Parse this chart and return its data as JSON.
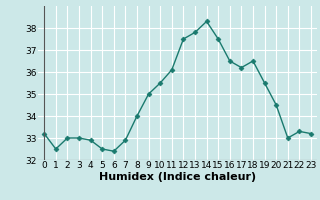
{
  "x": [
    0,
    1,
    2,
    3,
    4,
    5,
    6,
    7,
    8,
    9,
    10,
    11,
    12,
    13,
    14,
    15,
    16,
    17,
    18,
    19,
    20,
    21,
    22,
    23
  ],
  "y": [
    33.2,
    32.5,
    33.0,
    33.0,
    32.9,
    32.5,
    32.4,
    32.9,
    34.0,
    35.0,
    35.5,
    36.1,
    37.5,
    37.8,
    38.3,
    37.5,
    36.5,
    36.2,
    36.5,
    35.5,
    34.5,
    33.0,
    33.3,
    33.2
  ],
  "line_color": "#1a7a6e",
  "marker": "D",
  "marker_size": 2.5,
  "bg_color": "#cce8e8",
  "grid_color": "#ffffff",
  "xlabel": "Humidex (Indice chaleur)",
  "ylim": [
    32,
    39
  ],
  "xlim": [
    -0.5,
    23.5
  ],
  "yticks": [
    32,
    33,
    34,
    35,
    36,
    37,
    38
  ],
  "xticks": [
    0,
    1,
    2,
    3,
    4,
    5,
    6,
    7,
    8,
    9,
    10,
    11,
    12,
    13,
    14,
    15,
    16,
    17,
    18,
    19,
    20,
    21,
    22,
    23
  ],
  "tick_fontsize": 6.5,
  "xlabel_fontsize": 8,
  "line_width": 1.0
}
